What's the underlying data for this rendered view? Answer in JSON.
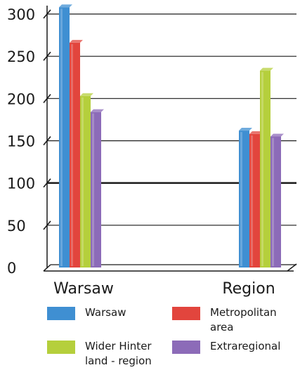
{
  "chart_data": {
    "type": "bar",
    "categories": [
      "Warsaw",
      "Region"
    ],
    "ylim": [
      0,
      300
    ],
    "yticks": [
      0,
      50,
      100,
      150,
      200,
      250,
      300
    ],
    "grid": true,
    "legend_position": "bottom",
    "series": [
      {
        "name": "Warsaw",
        "color": "#3f8fd2",
        "values": [
          308,
          162
        ]
      },
      {
        "name": "Metropolitan area",
        "color": "#e2453d",
        "values": [
          266,
          158
        ]
      },
      {
        "name": "Wider Hinter land - region",
        "color": "#b5cf3c",
        "values": [
          203,
          233
        ]
      },
      {
        "name": "Extraregional",
        "color": "#8c6bb8",
        "values": [
          184,
          155
        ]
      }
    ]
  }
}
